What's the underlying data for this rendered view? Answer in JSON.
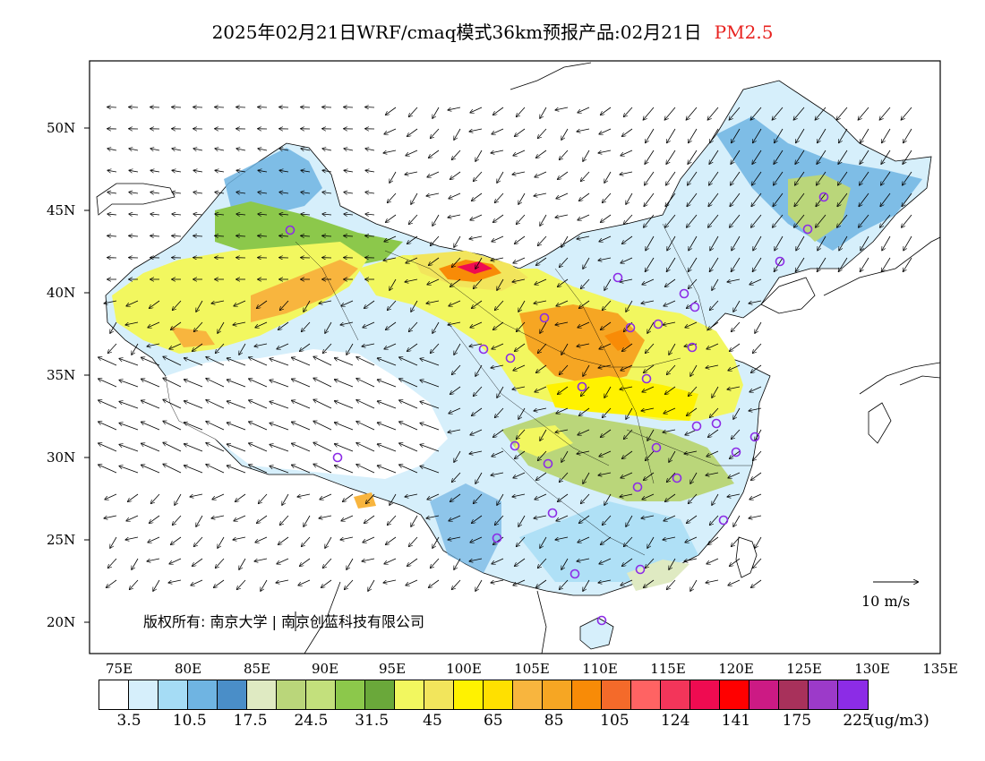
{
  "title": {
    "text": "2025年02月21日WRF/cmaq模式36km预报产品:02月21日",
    "variable": "PM2.5",
    "variable_color": "#e8221f"
  },
  "axes": {
    "lat_labels": [
      "50N",
      "45N",
      "40N",
      "35N",
      "30N",
      "25N",
      "20N"
    ],
    "lon_labels": [
      "75E",
      "80E",
      "85E",
      "90E",
      "95E",
      "100E",
      "105E",
      "110E",
      "115E",
      "120E",
      "125E",
      "130E",
      "135E"
    ]
  },
  "copyright": "版权所有: 南京大学 | 南京创蓝科技有限公司",
  "wind_reference": "10 m/s",
  "colorbar": {
    "colors": [
      "#ffffff",
      "#d6effb",
      "#a5dcf5",
      "#6fb4e2",
      "#4a8ec8",
      "#dfeac2",
      "#bad67a",
      "#c3e07c",
      "#8cc84b",
      "#6aa83a",
      "#f2f75f",
      "#f2e55c",
      "#fff200",
      "#ffe000",
      "#f8b53e",
      "#f6a623",
      "#f88b07",
      "#f46a2a",
      "#ff6363",
      "#f3355a",
      "#ef0b51",
      "#ff0000",
      "#cc1a84",
      "#a8315b",
      "#9c3ac9",
      "#8c2ce6"
    ],
    "labels": [
      "3.5",
      "10.5",
      "17.5",
      "24.5",
      "31.5",
      "45",
      "65",
      "85",
      "105",
      "124",
      "141",
      "175",
      "225"
    ],
    "unit": "(ug/m3)"
  },
  "stations_icon": "circle-marker-icon"
}
